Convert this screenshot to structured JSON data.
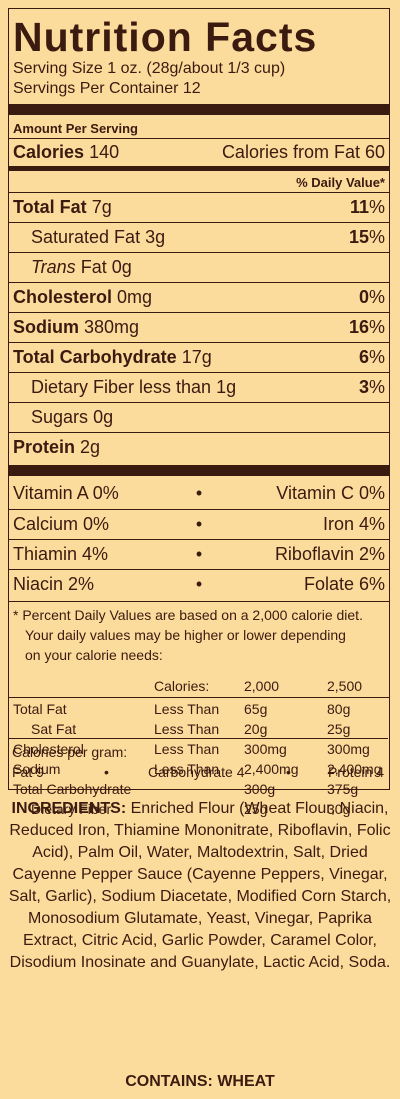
{
  "title": "Nutrition Facts",
  "serving_size": "Serving Size 1 oz. (28g/about 1/3 cup)",
  "servings_per_container": "Servings Per Container 12",
  "amount_per_serving": "Amount Per Serving",
  "calories_label": "Calories",
  "calories_value": "140",
  "calories_fat": "Calories from Fat 60",
  "dv_header": "% Daily Value*",
  "nutrients": [
    {
      "name": "Total Fat",
      "amount": "7g",
      "dv": "11",
      "pct": "%"
    },
    {
      "name": "Saturated Fat",
      "amount": "3g",
      "dv": "15",
      "pct": "%"
    },
    {
      "name_italic": "Trans",
      "name": "Fat",
      "amount": "0g"
    },
    {
      "name": "Cholesterol",
      "amount": "0mg",
      "dv": "0",
      "pct": "%"
    },
    {
      "name": "Sodium",
      "amount": "380mg",
      "dv": "16",
      "pct": "%"
    },
    {
      "name": "Total Carbohydrate",
      "amount": "17g",
      "dv": "6",
      "pct": "%"
    },
    {
      "name": "Dietary Fiber less than",
      "amount": "1g",
      "dv": "3",
      "pct": "%"
    },
    {
      "name": "Sugars",
      "amount": "0g"
    },
    {
      "name": "Protein",
      "amount": "2g"
    }
  ],
  "vitamins": [
    {
      "left": "Vitamin A 0%",
      "right": "Vitamin C 0%"
    },
    {
      "left": "Calcium 0%",
      "right": "Iron 4%"
    },
    {
      "left": "Thiamin 4%",
      "right": "Riboflavin 2%"
    },
    {
      "left": "Niacin 2%",
      "right": "Folate 6%"
    }
  ],
  "bullet": "•",
  "footnote": [
    "* Percent Daily Values are based on a 2,000 calorie diet.",
    "Your daily values may be higher or lower depending",
    "on your calorie needs:"
  ],
  "table_header": {
    "calories": "Calories:",
    "c2000": "2,000",
    "c2500": "2,500"
  },
  "table_rows": [
    {
      "name": "Total Fat",
      "lt": "Less Than",
      "a": "65g",
      "b": "80g"
    },
    {
      "name": "Sat Fat",
      "lt": "Less Than",
      "a": "20g",
      "b": "25g"
    },
    {
      "name": "Cholesterol",
      "lt": "Less Than",
      "a": "300mg",
      "b": "300mg"
    },
    {
      "name": "Sodium",
      "lt": "Less Than",
      "a": "2,400mg",
      "b": "2,400mg"
    },
    {
      "name": "Total Carbohydrate",
      "lt": "",
      "a": "300g",
      "b": "375g"
    },
    {
      "name": "Dietary Fiber",
      "lt": "",
      "a": "25g",
      "b": "30g"
    }
  ],
  "cal_per_gram": "Calories per gram:",
  "fat9": "Fat 9",
  "carb4": "Carbohydrate 4",
  "protein4": "Protein 4",
  "ingredients_label": "INGREDIENTS:",
  "ingredients_text": "Enriched Flour (Wheat Flour, Niacin, Reduced Iron, Thiamine Mononitrate, Riboflavin, Folic Acid), Palm Oil, Water, Maltodextrin, Salt, Dried Cayenne Pepper Sauce (Cayenne Peppers, Vinegar, Salt, Garlic), Sodium Diacetate, Modified Corn Starch, Monosodium Glutamate, Yeast, Vinegar, Paprika Extract, Citric Acid, Garlic Powder, Caramel Color, Disodium Inosinate and Guanylate, Lactic Acid, Soda.",
  "contains": "CONTAINS: WHEAT"
}
